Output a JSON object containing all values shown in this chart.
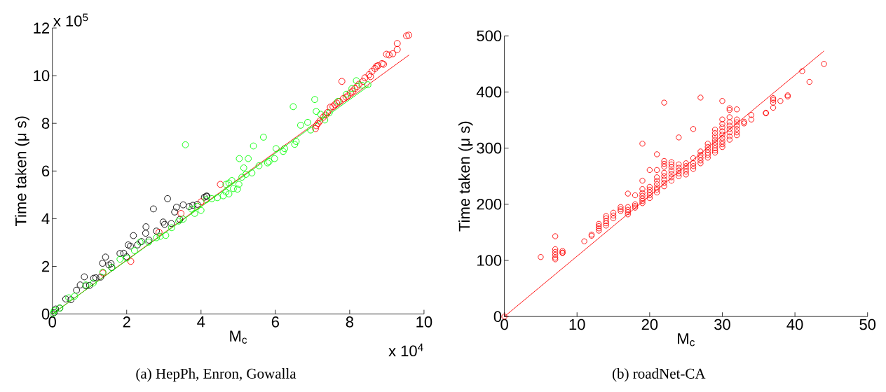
{
  "chart_data": [
    {
      "type": "scatter",
      "title": "(a) HepPh, Enron, Gowalla",
      "xlabel": "M$_{c}$",
      "ylabel": "Time taken (μ s)",
      "annotations": [
        "x 10$^{5}$",
        "x 10$^{4}$"
      ],
      "xlim": [
        0,
        10
      ],
      "ylim": [
        0,
        12
      ],
      "xticks": [
        0,
        2,
        4,
        6,
        8,
        10
      ],
      "yticks": [
        0,
        2,
        4,
        6,
        8,
        10,
        12
      ],
      "marker": "circle",
      "series": [
        {
          "color": "#000000",
          "x": [
            0.05,
            0.09,
            0.2,
            0.36,
            0.5,
            0.65,
            0.75,
            0.86,
            0.9,
            1.0,
            1.11,
            1.17,
            1.3,
            1.35,
            1.43,
            1.52,
            1.58,
            1.6,
            1.82,
            1.92,
            2.0,
            2.04,
            2.1,
            2.18,
            2.29,
            2.4,
            2.51,
            2.52,
            2.6,
            2.72,
            2.8,
            2.98,
            3.02,
            3.1,
            3.2,
            3.29,
            3.34,
            3.43,
            3.52,
            3.68,
            3.78,
            3.9,
            4.09,
            4.14,
            4.16
          ],
          "values": [
            0.06,
            0.21,
            0.25,
            0.63,
            0.6,
            1.0,
            1.22,
            1.56,
            1.18,
            1.2,
            1.5,
            1.52,
            1.55,
            2.13,
            2.39,
            2.06,
            2.11,
            1.95,
            2.54,
            2.55,
            2.4,
            2.9,
            2.85,
            3.29,
            2.9,
            3.04,
            3.39,
            3.66,
            3.1,
            4.41,
            3.48,
            3.86,
            3.76,
            4.84,
            3.8,
            4.28,
            4.48,
            3.97,
            4.58,
            4.51,
            4.56,
            4.6,
            4.9,
            4.94,
            4.95
          ]
        },
        {
          "color": "#ff0000",
          "x": [
            1.36,
            2.11,
            2.87,
            3.46,
            4.0,
            4.52,
            7.08,
            7.1,
            7.15,
            7.2,
            7.29,
            7.35,
            7.4,
            7.48,
            7.55,
            7.6,
            7.65,
            7.72,
            7.79,
            7.83,
            7.9,
            7.95,
            8.02,
            8.08,
            8.14,
            8.2,
            8.25,
            8.36,
            8.41,
            8.52,
            8.56,
            8.6,
            8.68,
            8.72,
            8.76,
            8.87,
            8.91,
            8.99,
            9.06,
            9.16,
            9.28,
            9.28,
            9.53,
            9.59
          ],
          "values": [
            1.72,
            2.21,
            3.43,
            4.22,
            4.71,
            5.44,
            7.78,
            7.9,
            8.0,
            8.1,
            8.26,
            8.35,
            8.45,
            8.68,
            8.7,
            8.78,
            8.85,
            8.92,
            9.76,
            9.04,
            9.1,
            9.15,
            9.28,
            9.35,
            9.46,
            9.55,
            9.64,
            9.76,
            9.91,
            10.04,
            9.96,
            10.18,
            10.3,
            10.39,
            10.42,
            10.51,
            10.48,
            10.9,
            10.87,
            10.92,
            11.1,
            11.35,
            11.67,
            11.7
          ]
        },
        {
          "color": "#00ff00",
          "x": [
            0.02,
            0.05,
            0.2,
            0.44,
            0.6,
            0.9,
            1.1,
            1.36,
            1.6,
            1.82,
            2.0,
            2.21,
            2.36,
            2.59,
            2.8,
            2.9,
            3.05,
            3.21,
            3.4,
            3.52,
            3.58,
            3.75,
            3.83,
            3.9,
            4.0,
            4.14,
            4.29,
            4.44,
            4.6,
            4.67,
            4.67,
            4.75,
            4.75,
            4.83,
            4.87,
            4.98,
            5.02,
            5.03,
            5.1,
            5.15,
            5.21,
            5.27,
            5.37,
            5.41,
            5.56,
            5.68,
            5.79,
            5.83,
            5.98,
            6.02,
            6.21,
            6.25,
            6.48,
            6.52,
            6.56,
            6.68,
            6.87,
            6.95,
            7.06,
            7.1,
            7.22,
            7.33,
            7.45,
            7.68,
            7.91,
            8.06,
            8.18,
            8.33,
            8.49
          ],
          "values": [
            0.03,
            0.14,
            0.25,
            0.68,
            0.75,
            1.22,
            1.3,
            1.76,
            1.95,
            2.3,
            2.35,
            2.66,
            3.02,
            3.02,
            3.2,
            3.26,
            3.3,
            3.62,
            3.9,
            3.98,
            7.1,
            4.4,
            4.22,
            4.52,
            4.35,
            4.8,
            4.84,
            4.88,
            4.96,
            5.12,
            5.44,
            5.04,
            5.5,
            5.6,
            5.26,
            5.24,
            5.44,
            6.52,
            5.74,
            6.13,
            5.86,
            6.52,
            5.92,
            7.05,
            6.22,
            7.42,
            6.34,
            6.4,
            6.52,
            6.94,
            6.82,
            6.94,
            8.7,
            7.12,
            7.24,
            7.92,
            8.04,
            7.72,
            9.0,
            8.5,
            8.38,
            8.14,
            8.44,
            8.92,
            9.22,
            9.46,
            9.79,
            9.6,
            9.62
          ]
        },
        {
          "type": "line",
          "marker": "none",
          "color": "#ff0000",
          "x": [
            0,
            9.6
          ],
          "values": [
            0,
            10.87
          ]
        },
        {
          "type": "line",
          "marker": "none",
          "color": "#00ff00",
          "x": [
            0,
            8.52
          ],
          "values": [
            0,
            9.58
          ]
        }
      ]
    },
    {
      "type": "scatter",
      "title": "(b) roadNet-CA",
      "xlabel": "M$_{c}$",
      "ylabel": "Time taken (μ s)",
      "xlim": [
        0,
        50
      ],
      "ylim": [
        0,
        500
      ],
      "xticks": [
        0,
        10,
        20,
        30,
        40,
        50
      ],
      "yticks": [
        0,
        100,
        200,
        300,
        400,
        500
      ],
      "marker": "circle",
      "series": [
        {
          "color": "#ff0000",
          "x": [
            0,
            5,
            7,
            7,
            7,
            7,
            7,
            7,
            8,
            8,
            8,
            11,
            12,
            12,
            13,
            13,
            13,
            13,
            14,
            14,
            14,
            14,
            14,
            15,
            15,
            15,
            16,
            16,
            16,
            17,
            17,
            17,
            17,
            17,
            18,
            18,
            18,
            18,
            19,
            19,
            19,
            19,
            19,
            19,
            19,
            19,
            20,
            20,
            20,
            20,
            20,
            20,
            21,
            21,
            21,
            21,
            21,
            21,
            21,
            21,
            22,
            22,
            22,
            22,
            22,
            22,
            22,
            22,
            22,
            23,
            23,
            23,
            23,
            23,
            23,
            23,
            24,
            24,
            24,
            24,
            24,
            24,
            25,
            25,
            25,
            25,
            25,
            26,
            26,
            26,
            26,
            26,
            27,
            27,
            27,
            27,
            27,
            27,
            28,
            28,
            28,
            28,
            28,
            28,
            29,
            29,
            29,
            29,
            29,
            29,
            29,
            29,
            29,
            30,
            30,
            30,
            30,
            30,
            30,
            30,
            30,
            30,
            30,
            31,
            31,
            31,
            31,
            31,
            31,
            31,
            31,
            31,
            32,
            32,
            32,
            32,
            32,
            32,
            32,
            33,
            33,
            34,
            34,
            36,
            36,
            37,
            37,
            37,
            37,
            38,
            39,
            39,
            41,
            42,
            44
          ],
          "values": [
            0,
            106,
            143,
            120,
            115,
            110,
            105,
            102,
            117,
            114,
            113,
            134,
            146,
            144,
            165,
            161,
            157,
            153,
            179,
            175,
            170,
            166,
            162,
            185,
            180,
            175,
            195,
            191,
            188,
            219,
            195,
            190,
            186,
            182,
            216,
            200,
            197,
            194,
            308,
            242,
            227,
            220,
            215,
            210,
            206,
            202,
            261,
            231,
            226,
            221,
            216,
            211,
            289,
            261,
            248,
            242,
            236,
            230,
            226,
            221,
            381,
            277,
            272,
            267,
            256,
            250,
            244,
            238,
            232,
            275,
            271,
            266,
            260,
            254,
            248,
            242,
            319,
            271,
            265,
            260,
            255,
            250,
            273,
            268,
            263,
            258,
            253,
            334,
            282,
            273,
            268,
            263,
            390,
            294,
            288,
            283,
            278,
            273,
            308,
            302,
            297,
            292,
            288,
            283,
            333,
            327,
            321,
            315,
            310,
            305,
            300,
            296,
            292,
            384,
            351,
            343,
            337,
            330,
            324,
            318,
            312,
            307,
            302,
            371,
            368,
            355,
            346,
            340,
            334,
            328,
            321,
            315,
            369,
            351,
            346,
            340,
            334,
            328,
            323,
            347,
            344,
            359,
            351,
            363,
            362,
            389,
            386,
            381,
            372,
            384,
            394,
            392,
            437,
            418,
            450
          ]
        },
        {
          "type": "line",
          "marker": "none",
          "color": "#ff0000",
          "x": [
            0,
            44
          ],
          "values": [
            0,
            473
          ]
        }
      ]
    }
  ]
}
